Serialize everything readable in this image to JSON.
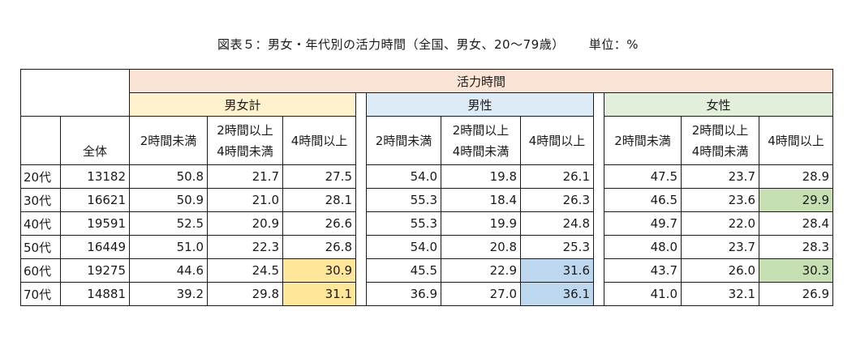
{
  "title": "図表５：男女・年代別の活力時間（全国、男女、20～79歳）",
  "unit": "単位：%",
  "header": {
    "activity": "活力時間",
    "groups": [
      "男女計",
      "男性",
      "女性"
    ],
    "zentai": "全体",
    "col_under2": "2時間未満",
    "col_2to4_line1": "2時間以上",
    "col_2to4_line2": "4時間未満",
    "col_over4": "4時間以上"
  },
  "rows": [
    {
      "age": "20代",
      "total": "13182",
      "all": [
        "50.8",
        "21.7",
        "27.5"
      ],
      "male": [
        "54.0",
        "19.8",
        "26.1"
      ],
      "female": [
        "47.5",
        "23.7",
        "28.9"
      ]
    },
    {
      "age": "30代",
      "total": "16621",
      "all": [
        "50.9",
        "21.0",
        "28.1"
      ],
      "male": [
        "55.3",
        "18.4",
        "26.3"
      ],
      "female": [
        "46.5",
        "23.6",
        "29.9"
      ]
    },
    {
      "age": "40代",
      "total": "19591",
      "all": [
        "52.5",
        "20.9",
        "26.6"
      ],
      "male": [
        "55.3",
        "19.9",
        "24.8"
      ],
      "female": [
        "49.7",
        "22.0",
        "28.4"
      ]
    },
    {
      "age": "50代",
      "total": "16449",
      "all": [
        "51.0",
        "22.3",
        "26.8"
      ],
      "male": [
        "54.0",
        "20.8",
        "25.3"
      ],
      "female": [
        "48.0",
        "23.7",
        "28.3"
      ]
    },
    {
      "age": "60代",
      "total": "19275",
      "all": [
        "44.6",
        "24.5",
        "30.9"
      ],
      "male": [
        "45.5",
        "22.9",
        "31.6"
      ],
      "female": [
        "43.7",
        "26.0",
        "30.3"
      ]
    },
    {
      "age": "70代",
      "total": "14881",
      "all": [
        "39.2",
        "29.8",
        "31.1"
      ],
      "male": [
        "36.9",
        "27.0",
        "36.1"
      ],
      "female": [
        "41.0",
        "32.1",
        "26.9"
      ]
    }
  ],
  "colors": {
    "activity_header": "#fbe4d5",
    "group_all": "#fff2cc",
    "group_male": "#ddebf7",
    "group_female": "#e2efda",
    "highlight_all": "#ffe699",
    "highlight_male": "#bdd7ee",
    "highlight_female": "#c6e0b4"
  }
}
